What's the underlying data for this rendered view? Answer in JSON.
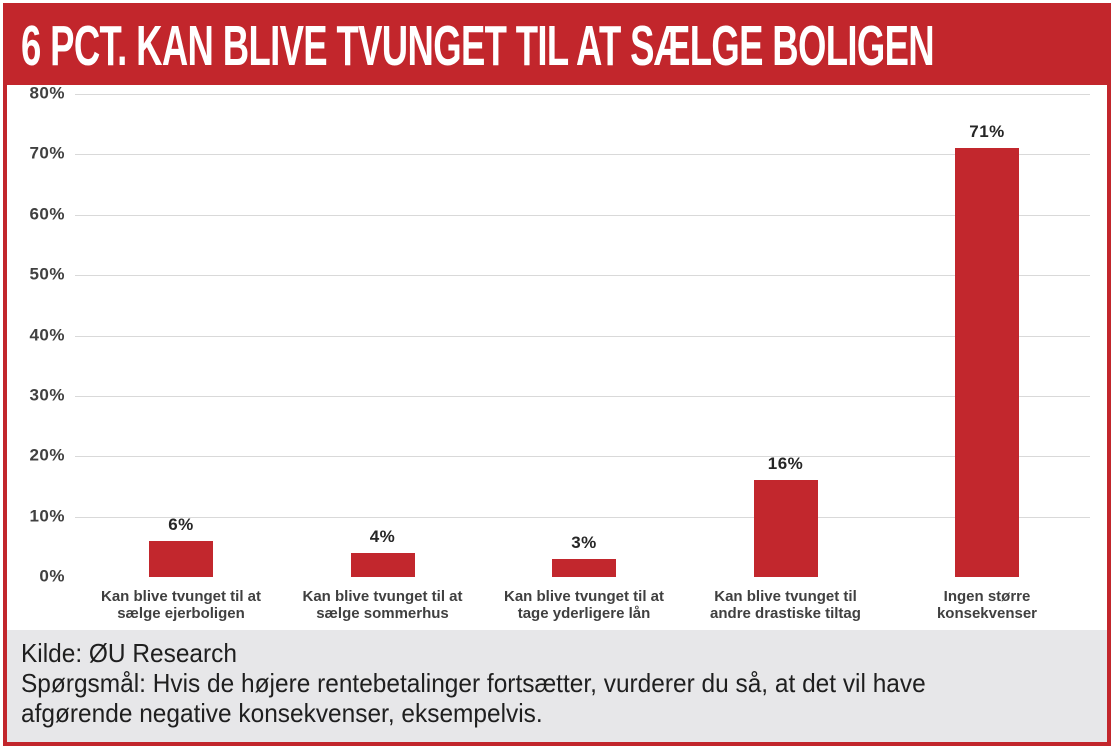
{
  "header": {
    "title": "6 PCT. KAN BLIVE TVUNGET TIL AT SÆLGE BOLIGEN"
  },
  "chart_data": {
    "type": "bar",
    "title": "6 PCT. KAN BLIVE TVUNGET TIL AT SÆLGE BOLIGEN",
    "categories": [
      "Kan blive tvunget til at\nsælge ejerboligen",
      "Kan blive tvunget til at\nsælge sommerhus",
      "Kan blive tvunget til at\ntage yderligere lån",
      "Kan blive tvunget til\nandre drastiske tiltag",
      "Ingen større\nkonsekvenser"
    ],
    "values": [
      6,
      4,
      3,
      16,
      71
    ],
    "value_labels": [
      "6%",
      "4%",
      "3%",
      "16%",
      "71%"
    ],
    "xlabel": "",
    "ylabel": "",
    "ylim": [
      0,
      80
    ],
    "yticks": [
      0,
      10,
      20,
      30,
      40,
      50,
      60,
      70,
      80
    ],
    "ytick_labels": [
      "0%",
      "10%",
      "20%",
      "30%",
      "40%",
      "50%",
      "60%",
      "70%",
      "80%"
    ],
    "grid": true,
    "legend": "none",
    "bar_color": "#c2272d"
  },
  "footer": {
    "source": "Kilde: ØU Research",
    "question": "Spørgsmål: Hvis de højere rentebetalinger fortsætter, vurderer du så, at det vil have\nafgørende negative konsekvenser, eksempelvis."
  },
  "colors": {
    "accent_red": "#c2262c",
    "bar_red": "#c2272d",
    "footer_bg": "#e7e7e9",
    "grid_line": "#d9d9d9",
    "tick_text": "#404040"
  }
}
